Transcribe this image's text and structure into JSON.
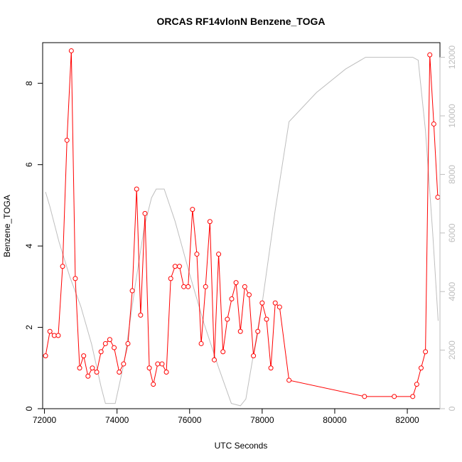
{
  "chart_data": {
    "type": "line",
    "title": "ORCAS RF14vlonN Benzene_TOGA",
    "xlabel": "UTC Seconds",
    "ylabel": "Benzene_TOGA",
    "xlim": [
      71950,
      82900
    ],
    "ylim": [
      0,
      9
    ],
    "y2lim": [
      0,
      12500
    ],
    "x_ticks": [
      72000,
      74000,
      76000,
      78000,
      80000,
      82000
    ],
    "y_ticks": [
      0,
      2,
      4,
      6,
      8
    ],
    "y2_ticks": [
      0,
      2000,
      4000,
      6000,
      8000,
      10000,
      12000
    ],
    "series": [
      {
        "role": "primary",
        "color": "#ff0000",
        "style": "line-with-open-circles",
        "x": [
          72030,
          72150,
          72270,
          72380,
          72500,
          72620,
          72740,
          72850,
          72970,
          73080,
          73200,
          73320,
          73440,
          73560,
          73680,
          73800,
          73920,
          74060,
          74180,
          74300,
          74420,
          74540,
          74650,
          74770,
          74890,
          75000,
          75120,
          75240,
          75360,
          75480,
          75600,
          75720,
          75840,
          75960,
          76080,
          76200,
          76320,
          76440,
          76560,
          76680,
          76800,
          76920,
          77040,
          77160,
          77280,
          77400,
          77520,
          77640,
          77760,
          77880,
          78000,
          78120,
          78240,
          78360,
          78480,
          78740,
          80820,
          81640,
          82150,
          82260,
          82380,
          82500,
          82620,
          82730,
          82840
        ],
        "y": [
          1.3,
          1.9,
          1.8,
          1.8,
          3.5,
          6.6,
          8.8,
          3.2,
          1.0,
          1.3,
          0.8,
          1.0,
          0.9,
          1.4,
          1.6,
          1.7,
          1.5,
          0.9,
          1.1,
          1.6,
          2.9,
          5.4,
          2.3,
          4.8,
          1.0,
          0.6,
          1.1,
          1.1,
          0.9,
          3.2,
          3.5,
          3.5,
          3.0,
          3.0,
          4.9,
          3.8,
          1.6,
          3.0,
          4.6,
          1.2,
          3.8,
          1.4,
          2.2,
          2.7,
          3.1,
          1.9,
          3.0,
          2.8,
          1.3,
          1.9,
          2.6,
          2.2,
          1.0,
          2.6,
          2.5,
          0.7,
          0.3,
          0.3,
          0.3,
          0.6,
          1.0,
          1.4,
          8.7,
          7.0,
          5.2
        ]
      },
      {
        "role": "secondary",
        "color": "#bebebe",
        "style": "line",
        "x": [
          72030,
          72150,
          72400,
          72700,
          73000,
          73300,
          73560,
          73680,
          73950,
          74200,
          74500,
          74750,
          74950,
          75080,
          75300,
          75600,
          76000,
          76400,
          76800,
          77150,
          77400,
          77550,
          78000,
          78350,
          78740,
          79500,
          80300,
          80850,
          81500,
          82050,
          82150,
          82300,
          82500,
          82700,
          82850
        ],
        "y": [
          7400,
          6900,
          5700,
          4500,
          3500,
          2200,
          750,
          180,
          180,
          1600,
          4200,
          6200,
          7200,
          7500,
          7500,
          6400,
          4600,
          2900,
          1400,
          180,
          100,
          330,
          3600,
          6700,
          9800,
          10800,
          11600,
          12000,
          12000,
          12000,
          12000,
          11900,
          9500,
          6000,
          3000
        ]
      }
    ]
  }
}
